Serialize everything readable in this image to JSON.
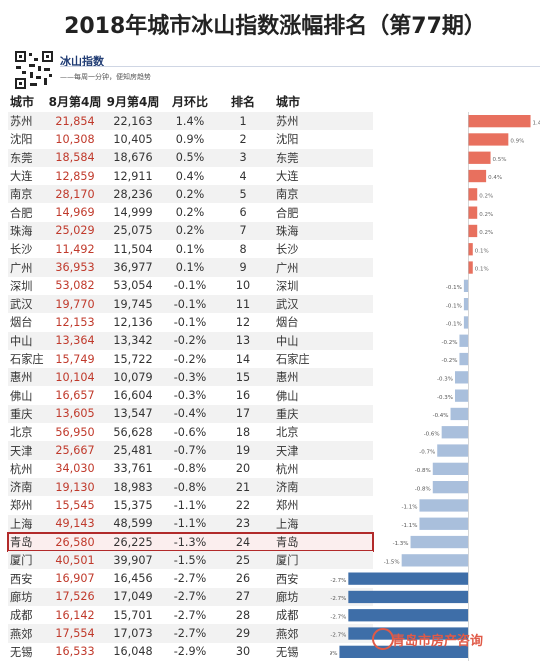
{
  "title": "2018年城市冰山指数涨幅排名（第77期）",
  "brand": {
    "name": "冰山指数",
    "tagline": "——每周一分钟，便知房趋势"
  },
  "headers": [
    "城市",
    "8月第4周",
    "9月第4周",
    "月环比",
    "排名",
    "城市"
  ],
  "rows": [
    [
      "苏州",
      "21,854",
      "22,163",
      "1.4%",
      "1",
      "苏州"
    ],
    [
      "沈阳",
      "10,308",
      "10,405",
      "0.9%",
      "2",
      "沈阳"
    ],
    [
      "东莞",
      "18,584",
      "18,676",
      "0.5%",
      "3",
      "东莞"
    ],
    [
      "大连",
      "12,859",
      "12,911",
      "0.4%",
      "4",
      "大连"
    ],
    [
      "南京",
      "28,170",
      "28,236",
      "0.2%",
      "5",
      "南京"
    ],
    [
      "合肥",
      "14,969",
      "14,999",
      "0.2%",
      "6",
      "合肥"
    ],
    [
      "珠海",
      "25,029",
      "25,075",
      "0.2%",
      "7",
      "珠海"
    ],
    [
      "长沙",
      "11,492",
      "11,504",
      "0.1%",
      "8",
      "长沙"
    ],
    [
      "广州",
      "36,953",
      "36,977",
      "0.1%",
      "9",
      "广州"
    ],
    [
      "深圳",
      "53,082",
      "53,054",
      "-0.1%",
      "10",
      "深圳"
    ],
    [
      "武汉",
      "19,770",
      "19,745",
      "-0.1%",
      "11",
      "武汉"
    ],
    [
      "烟台",
      "12,153",
      "12,136",
      "-0.1%",
      "12",
      "烟台"
    ],
    [
      "中山",
      "13,364",
      "13,342",
      "-0.2%",
      "13",
      "中山"
    ],
    [
      "石家庄",
      "15,749",
      "15,722",
      "-0.2%",
      "14",
      "石家庄"
    ],
    [
      "惠州",
      "10,104",
      "10,079",
      "-0.3%",
      "15",
      "惠州"
    ],
    [
      "佛山",
      "16,657",
      "16,604",
      "-0.3%",
      "16",
      "佛山"
    ],
    [
      "重庆",
      "13,605",
      "13,547",
      "-0.4%",
      "17",
      "重庆"
    ],
    [
      "北京",
      "56,950",
      "56,628",
      "-0.6%",
      "18",
      "北京"
    ],
    [
      "天津",
      "25,667",
      "25,481",
      "-0.7%",
      "19",
      "天津"
    ],
    [
      "杭州",
      "34,030",
      "33,761",
      "-0.8%",
      "20",
      "杭州"
    ],
    [
      "济南",
      "19,130",
      "18,983",
      "-0.8%",
      "21",
      "济南"
    ],
    [
      "郑州",
      "15,545",
      "15,375",
      "-1.1%",
      "22",
      "郑州"
    ],
    [
      "上海",
      "49,143",
      "48,599",
      "-1.1%",
      "23",
      "上海"
    ],
    [
      "青岛",
      "26,580",
      "26,225",
      "-1.3%",
      "24",
      "青岛"
    ],
    [
      "厦门",
      "40,501",
      "39,907",
      "-1.5%",
      "25",
      "厦门"
    ],
    [
      "西安",
      "16,907",
      "16,456",
      "-2.7%",
      "26",
      "西安"
    ],
    [
      "廊坊",
      "17,526",
      "17,049",
      "-2.7%",
      "27",
      "廊坊"
    ],
    [
      "成都",
      "16,142",
      "15,701",
      "-2.7%",
      "28",
      "成都"
    ],
    [
      "燕郊",
      "17,554",
      "17,073",
      "-2.7%",
      "29",
      "燕郊"
    ],
    [
      "无锡",
      "16,533",
      "16,048",
      "-2.9%",
      "30",
      "无锡"
    ]
  ],
  "highlight_city": "青岛",
  "watermark": "青岛市房产咨询",
  "colors": {
    "positive": "#e8705e",
    "negative_light": "#a9bfdc",
    "negative_dark": "#3e6ea8",
    "highlight": "#b22a2a"
  },
  "chart_data": {
    "type": "bar",
    "orientation": "horizontal",
    "categories": [
      "苏州",
      "沈阳",
      "东莞",
      "大连",
      "南京",
      "合肥",
      "珠海",
      "长沙",
      "广州",
      "深圳",
      "武汉",
      "烟台",
      "中山",
      "石家庄",
      "惠州",
      "佛山",
      "重庆",
      "北京",
      "天津",
      "杭州",
      "济南",
      "郑州",
      "上海",
      "青岛",
      "厦门",
      "西安",
      "廊坊",
      "成都",
      "燕郊",
      "无锡"
    ],
    "values": [
      1.4,
      0.9,
      0.5,
      0.4,
      0.2,
      0.2,
      0.2,
      0.1,
      0.1,
      -0.1,
      -0.1,
      -0.1,
      -0.2,
      -0.2,
      -0.3,
      -0.3,
      -0.4,
      -0.6,
      -0.7,
      -0.8,
      -0.8,
      -1.1,
      -1.1,
      -1.3,
      -1.5,
      -2.7,
      -2.7,
      -2.7,
      -2.7,
      -2.9
    ],
    "labels": [
      "1.4%",
      "0.9%",
      "0.5%",
      "0.4%",
      "0.2%",
      "0.2%",
      "0.2%",
      "0.1%",
      "0.1%",
      "-0.1%",
      "-0.1%",
      "-0.1%",
      "-0.2%",
      "-0.2%",
      "-0.3%",
      "-0.3%",
      "-0.4%",
      "-0.6%",
      "-0.7%",
      "-0.8%",
      "-0.8%",
      "-1.1%",
      "-1.1%",
      "-1.3%",
      "-1.5%",
      "-2.7%",
      "-2.7%",
      "-2.7%",
      "-2.7%",
      "-2.9%"
    ],
    "xlim": [
      -3.0,
      1.5
    ],
    "xticks": [
      "-3.0%",
      "-2.5%",
      "-2.0%",
      "-1.5%",
      "-1.0%",
      "-0.5%",
      "0.0%",
      "0.5%",
      "1.0%",
      "1.5%"
    ]
  }
}
